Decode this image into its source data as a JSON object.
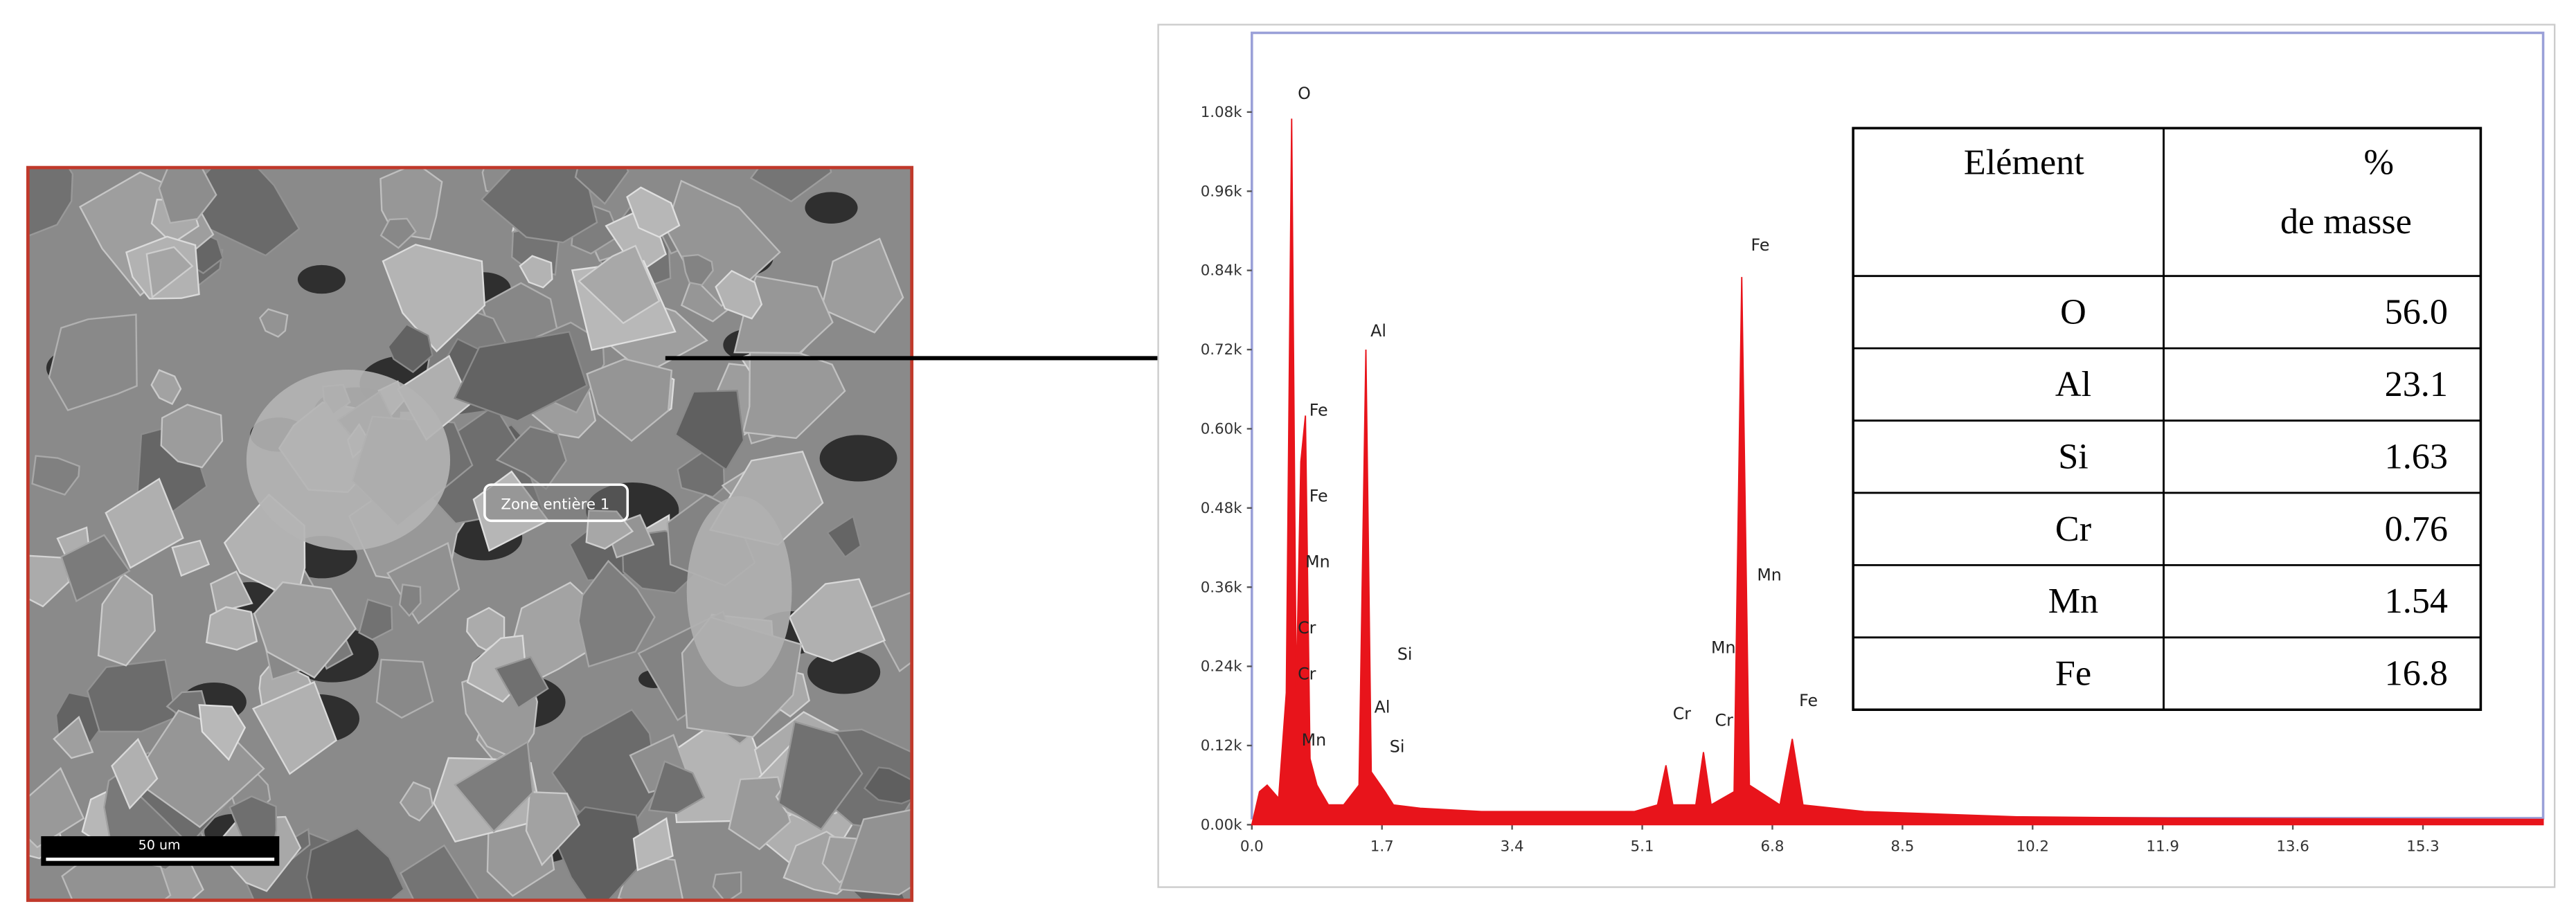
{
  "sem_image": {
    "zone_label": "Zone entière 1",
    "scale_label": "50 um"
  },
  "chart_data": {
    "type": "area",
    "color": "#e8141b",
    "xlim": [
      0,
      16.87
    ],
    "ylim": [
      0,
      1.2
    ],
    "xticks": [
      {
        "value": 0,
        "label": "0.0"
      },
      1.7,
      3.4,
      5.1,
      6.8,
      8.5,
      10.2,
      11.9,
      13.6,
      15.3
    ],
    "yticks": [
      {
        "value": 0,
        "label": "0.00k"
      },
      {
        "value": 0.12,
        "label": "0.12k"
      },
      {
        "value": 0.24,
        "label": "0.24k"
      },
      {
        "value": 0.36,
        "label": "0.36k"
      },
      {
        "value": 0.48,
        "label": "0.48k"
      },
      {
        "value": 0.6,
        "label": "0.60k"
      },
      {
        "value": 0.72,
        "label": "0.72k"
      },
      {
        "value": 0.84,
        "label": "0.84k"
      },
      {
        "value": 0.96,
        "label": "0.96k"
      },
      {
        "value": 1.08,
        "label": "1.08k"
      }
    ],
    "x": [
      0,
      0.1,
      0.2,
      0.35,
      0.45,
      0.52,
      0.58,
      0.64,
      0.7,
      0.76,
      0.85,
      1.0,
      1.2,
      1.4,
      1.49,
      1.56,
      1.74,
      1.85,
      2.2,
      3.0,
      4.0,
      5.0,
      5.3,
      5.41,
      5.5,
      5.8,
      5.9,
      6.0,
      6.3,
      6.4,
      6.5,
      6.9,
      7.06,
      7.2,
      8.0,
      10.0,
      12.0,
      16.87
    ],
    "values": [
      0,
      0.05,
      0.06,
      0.04,
      0.2,
      1.07,
      0.2,
      0.55,
      0.62,
      0.1,
      0.06,
      0.03,
      0.03,
      0.06,
      0.72,
      0.08,
      0.05,
      0.03,
      0.025,
      0.02,
      0.02,
      0.02,
      0.03,
      0.09,
      0.03,
      0.03,
      0.11,
      0.03,
      0.05,
      0.83,
      0.06,
      0.03,
      0.13,
      0.03,
      0.02,
      0.012,
      0.01,
      0.008
    ],
    "annotations": [
      {
        "label": "O",
        "x": 0.6,
        "y": 1.1
      },
      {
        "label": "Fe",
        "x": 0.75,
        "y": 0.62
      },
      {
        "label": "Fe",
        "x": 0.75,
        "y": 0.49
      },
      {
        "label": "Mn",
        "x": 0.7,
        "y": 0.39
      },
      {
        "label": "Cr",
        "x": 0.6,
        "y": 0.29
      },
      {
        "label": "Cr",
        "x": 0.6,
        "y": 0.22
      },
      {
        "label": "Mn",
        "x": 0.65,
        "y": 0.12
      },
      {
        "label": "Al",
        "x": 1.55,
        "y": 0.74
      },
      {
        "label": "Al",
        "x": 1.6,
        "y": 0.17
      },
      {
        "label": "Si",
        "x": 1.9,
        "y": 0.25
      },
      {
        "label": "Si",
        "x": 1.8,
        "y": 0.11
      },
      {
        "label": "Fe",
        "x": 6.52,
        "y": 0.87
      },
      {
        "label": "Mn",
        "x": 6.6,
        "y": 0.37
      },
      {
        "label": "Mn",
        "x": 6.0,
        "y": 0.26
      },
      {
        "label": "Cr",
        "x": 5.5,
        "y": 0.16
      },
      {
        "label": "Cr",
        "x": 6.05,
        "y": 0.15
      },
      {
        "label": "Fe",
        "x": 7.15,
        "y": 0.18
      }
    ]
  },
  "table": {
    "header": {
      "element": "Elément",
      "mass_line1": "%",
      "mass_line2": "de masse"
    },
    "rows": [
      [
        "O",
        "56.0"
      ],
      [
        "Al",
        "23.1"
      ],
      [
        "Si",
        "1.63"
      ],
      [
        "Cr",
        "0.76"
      ],
      [
        "Mn",
        "1.54"
      ],
      [
        "Fe",
        "16.8"
      ]
    ]
  }
}
